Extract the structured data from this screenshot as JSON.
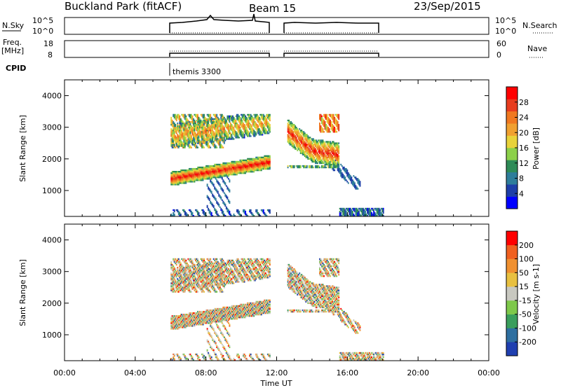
{
  "header": {
    "station": "Buckland Park (fitACF)",
    "beam": "Beam 15",
    "date": "23/Sep/2015"
  },
  "strip_labels": {
    "nsky": "N.Sky",
    "nsky_ticks": [
      "10^5",
      "10^0"
    ],
    "nsearch": "N.Search",
    "freq": "Freq.",
    "freq_unit": "[MHz]",
    "freq_ticks": [
      "18",
      "8"
    ],
    "nave_ticks": [
      "60",
      "0"
    ],
    "nave": "Nave",
    "cpid": "CPID",
    "program": "themis 3300"
  },
  "chart_data": [
    {
      "type": "heatmap",
      "name": "power-panel",
      "ylabel": "Slant Range [km]",
      "xlabel": "Time UT",
      "xlim_hours": [
        0,
        24
      ],
      "ylim": [
        180,
        4500
      ],
      "x_ticks": [
        "00:00",
        "04:00",
        "08:00",
        "12:00",
        "16:00",
        "20:00",
        "00:00"
      ],
      "y_ticks": [
        1000,
        2000,
        3000,
        4000
      ],
      "colorbar": {
        "label": "Power [dB]",
        "ticks": [
          "4",
          "8",
          "12",
          "16",
          "20",
          "24",
          "28"
        ],
        "colors": [
          "#0000ff",
          "#1e3fa8",
          "#2e7d9a",
          "#2e8b57",
          "#8cd04a",
          "#e8d23a",
          "#f0a030",
          "#f07820",
          "#e83c1e",
          "#ff0000"
        ]
      },
      "regions": [
        {
          "t_start": 6.0,
          "t_end": 11.6,
          "range_start": 180,
          "range_end": 3400
        },
        {
          "t_start": 12.6,
          "t_end": 18.0,
          "range_start": 180,
          "range_end": 3400
        }
      ]
    },
    {
      "type": "heatmap",
      "name": "velocity-panel",
      "ylabel": "Slant Range [km]",
      "xlabel": "Time UT",
      "xlim_hours": [
        0,
        24
      ],
      "ylim": [
        180,
        4500
      ],
      "x_ticks": [
        "00:00",
        "04:00",
        "08:00",
        "12:00",
        "16:00",
        "20:00",
        "00:00"
      ],
      "y_ticks": [
        1000,
        2000,
        3000,
        4000
      ],
      "colorbar": {
        "label": "Velocity [m s-1]",
        "ticks": [
          "200",
          "100",
          "50",
          "15",
          "-15",
          "-50",
          "-100",
          "-200"
        ],
        "colors": [
          "#1f3fb0",
          "#2e6fa0",
          "#3a9e5c",
          "#7ec84a",
          "#c8c8c0",
          "#e8c040",
          "#f09030",
          "#f06020",
          "#ff0000"
        ]
      },
      "regions": [
        {
          "t_start": 6.0,
          "t_end": 11.6,
          "range_start": 180,
          "range_end": 3400
        },
        {
          "t_start": 12.6,
          "t_end": 18.0,
          "range_start": 180,
          "range_end": 3400
        }
      ]
    }
  ]
}
